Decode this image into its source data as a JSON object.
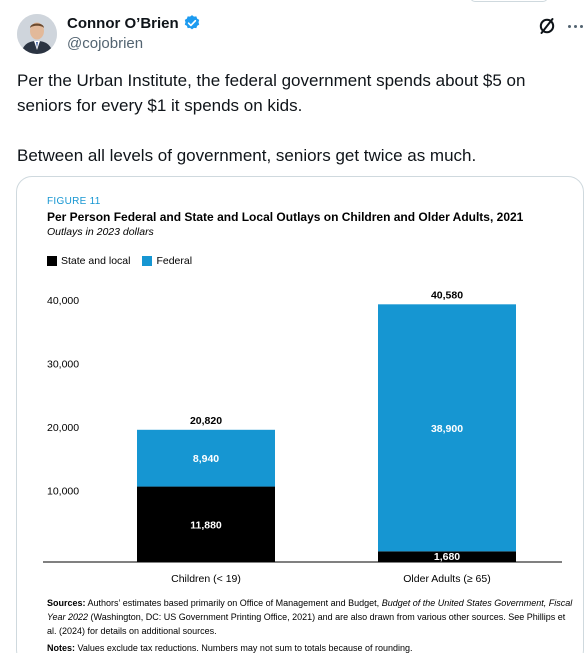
{
  "author": {
    "name": "Connor O’Brien",
    "handle": "@cojobrien",
    "verified_icon": "verified-badge-icon",
    "verified_color": "#1d9bf0"
  },
  "header_icons": {
    "grok": "grok-icon",
    "more": "more-icon"
  },
  "tweet": {
    "paragraphs": [
      "Per the Urban Institute, the federal government spends about $5 on seniors for every $1 it spends on kids.",
      "Between all levels of government, seniors get twice as much."
    ]
  },
  "figure": {
    "label": "FIGURE 11",
    "title": "Per Person Federal and State and Local Outlays on Children and Older Adults, 2021",
    "subtitle": "Outlays in 2023 dollars",
    "sources_label": "Sources:",
    "sources_text_1": " Authors’ estimates based primarily on Office of Management and Budget, ",
    "sources_italic": "Budget of the United States Government, Fiscal Year 2022",
    "sources_text_2": " (Washington, DC: US Government Printing Office, 2021) and are also drawn from various other sources. See Phillips et al. (2024) for details on additional sources.",
    "notes_label": "Notes:",
    "notes_text": " Values exclude tax reductions. Numbers may not sum to totals because of rounding."
  },
  "chart_data": {
    "type": "bar",
    "stacked": true,
    "categories": [
      "Children (< 19)",
      "Older Adults (≥ 65)"
    ],
    "series": [
      {
        "name": "State and local",
        "color": "#000000",
        "values": [
          11880,
          1680
        ],
        "labels": [
          "11,880",
          "1,680"
        ]
      },
      {
        "name": "Federal",
        "color": "#1696d2",
        "values": [
          8940,
          38900
        ],
        "labels": [
          "8,940",
          "38,900"
        ]
      }
    ],
    "totals": [
      20820,
      40580
    ],
    "total_labels": [
      "20,820",
      "40,580"
    ],
    "ylim": [
      0,
      40000
    ],
    "yticks": [
      10000,
      20000,
      30000,
      40000
    ],
    "ytick_labels": [
      "10,000",
      "20,000",
      "30,000",
      "40,000"
    ],
    "legend_position": "top-left",
    "grid": false
  }
}
